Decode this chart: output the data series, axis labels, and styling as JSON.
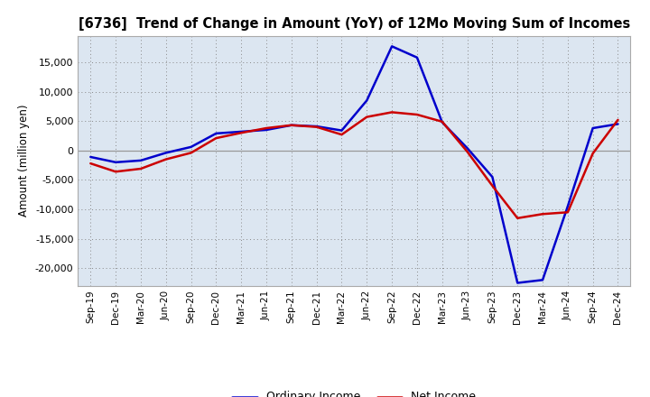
{
  "title": "[6736]  Trend of Change in Amount (YoY) of 12Mo Moving Sum of Incomes",
  "ylabel": "Amount (million yen)",
  "background_color": "#ffffff",
  "plot_bg_color": "#dce6f1",
  "x_labels": [
    "Sep-19",
    "Dec-19",
    "Mar-20",
    "Jun-20",
    "Sep-20",
    "Dec-20",
    "Mar-21",
    "Jun-21",
    "Sep-21",
    "Dec-21",
    "Mar-22",
    "Jun-22",
    "Sep-22",
    "Dec-22",
    "Mar-23",
    "Jun-23",
    "Sep-23",
    "Dec-23",
    "Mar-24",
    "Jun-24",
    "Sep-24",
    "Dec-24"
  ],
  "ordinary_income": [
    -1100,
    -2000,
    -1700,
    -400,
    600,
    2900,
    3200,
    3500,
    4300,
    4100,
    3400,
    8500,
    17700,
    15800,
    4800,
    400,
    -4500,
    -22500,
    -22000,
    -9500,
    3800,
    4500
  ],
  "net_income": [
    -2200,
    -3600,
    -3100,
    -1500,
    -400,
    2100,
    3000,
    3800,
    4300,
    4000,
    2700,
    5700,
    6500,
    6100,
    4900,
    -200,
    -6000,
    -11500,
    -10800,
    -10500,
    -500,
    5200
  ],
  "ordinary_color": "#0000cc",
  "net_color": "#cc0000",
  "line_width": 1.8,
  "ylim": [
    -23000,
    19500
  ],
  "yticks": [
    -20000,
    -15000,
    -10000,
    -5000,
    0,
    5000,
    10000,
    15000
  ],
  "legend_labels": [
    "Ordinary Income",
    "Net Income"
  ]
}
